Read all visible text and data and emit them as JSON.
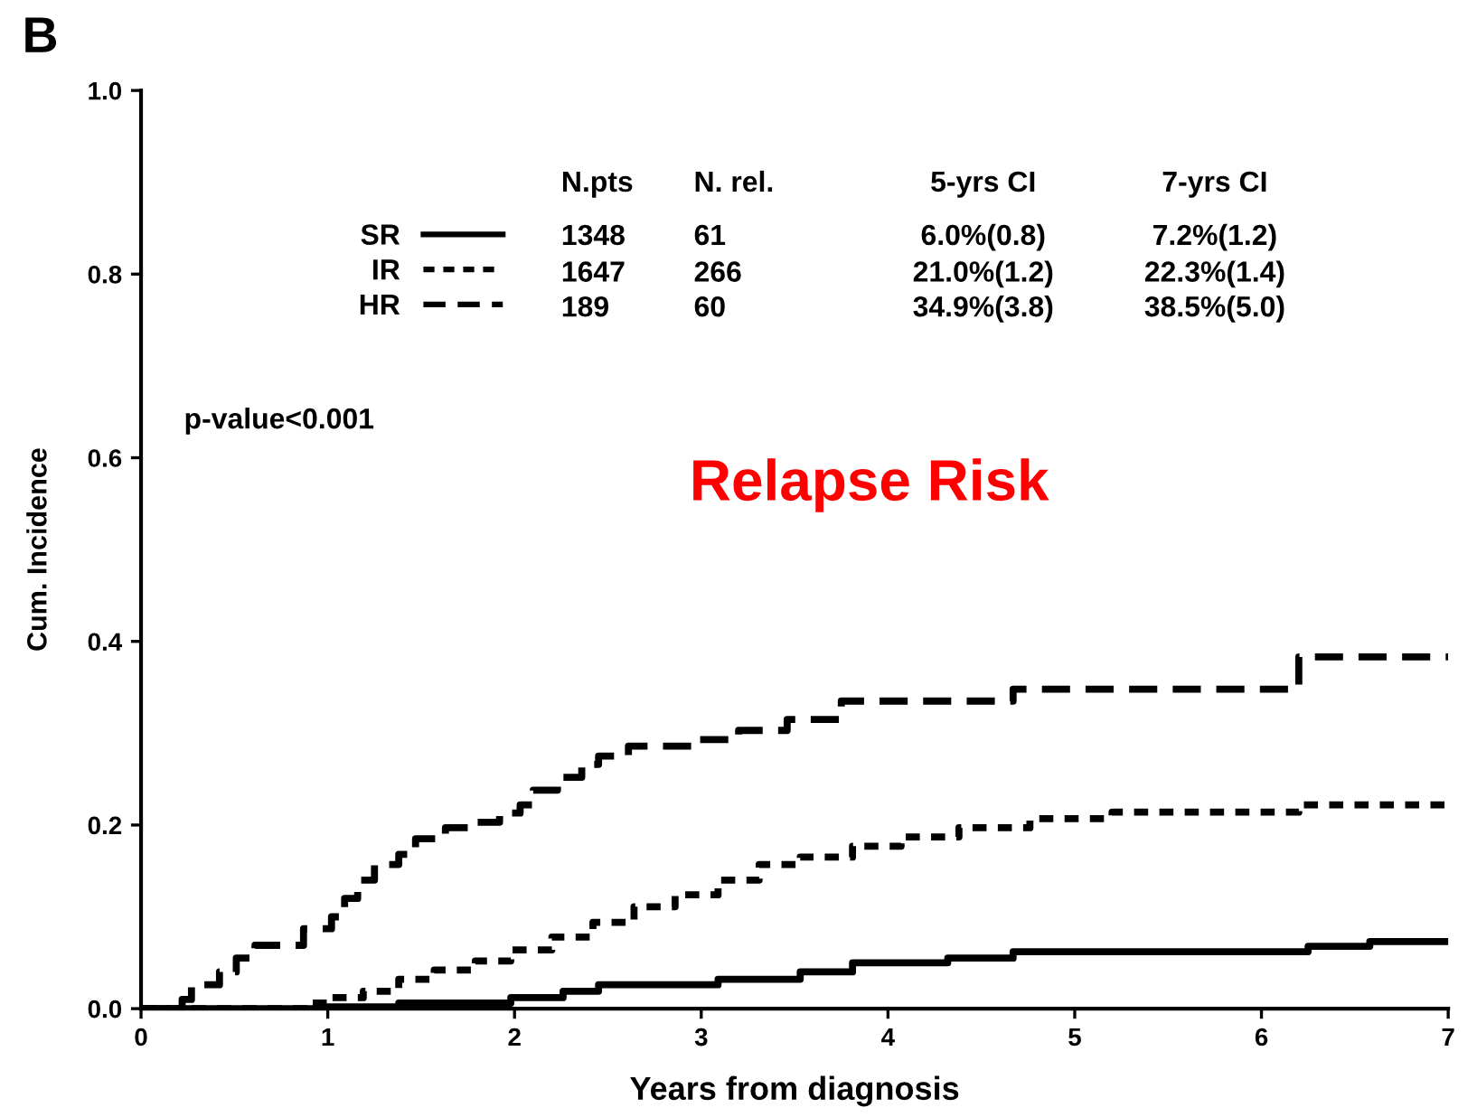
{
  "chart_data": {
    "type": "step",
    "title": "B",
    "xlabel": "Years from diagnosis",
    "ylabel": "Cum. Incidence",
    "xlim": [
      0,
      7
    ],
    "xticks": [
      0,
      1,
      2,
      3,
      4,
      5,
      6,
      7
    ],
    "ylim": [
      0,
      1
    ],
    "yticks": [
      {
        "value": 0,
        "label": "0.0"
      },
      {
        "value": 0.2,
        "label": "0.2"
      },
      {
        "value": 0.4,
        "label": "0.4"
      },
      {
        "value": 0.6,
        "label": "0.6"
      },
      {
        "value": 0.8,
        "label": "0.8"
      },
      {
        "value": 1,
        "label": "1.0"
      }
    ],
    "grid": false,
    "legend": "top",
    "series": [
      {
        "name": "SR",
        "color": "#000000",
        "line_style": "solid",
        "x": [
          0,
          1.0,
          1.38,
          1.98,
          2.26,
          2.45,
          3.09,
          3.53,
          3.81,
          4.32,
          4.67,
          6.25,
          6.58,
          7
        ],
        "values": [
          0,
          0.002,
          0.006,
          0.012,
          0.019,
          0.026,
          0.032,
          0.04,
          0.05,
          0.055,
          0.062,
          0.068,
          0.073,
          0.073
        ]
      },
      {
        "name": "IR",
        "color": "#000000",
        "line_style": "dotted",
        "x": [
          0,
          0.87,
          1.0,
          1.19,
          1.38,
          1.57,
          1.79,
          1.98,
          2.2,
          2.42,
          2.64,
          2.86,
          3.09,
          3.31,
          3.53,
          3.81,
          4.07,
          4.38,
          4.76,
          5.2,
          6.2,
          7
        ],
        "values": [
          0,
          0.006,
          0.012,
          0.019,
          0.032,
          0.042,
          0.052,
          0.064,
          0.078,
          0.094,
          0.111,
          0.124,
          0.14,
          0.157,
          0.165,
          0.177,
          0.187,
          0.197,
          0.207,
          0.214,
          0.222,
          0.222
        ]
      },
      {
        "name": "HR",
        "color": "#000000",
        "line_style": "dashed",
        "x": [
          0,
          0.22,
          0.27,
          0.42,
          0.51,
          0.61,
          0.87,
          1.02,
          1.09,
          1.16,
          1.25,
          1.38,
          1.47,
          1.63,
          1.75,
          1.92,
          2.03,
          2.1,
          2.23,
          2.36,
          2.45,
          2.61,
          2.96,
          3.2,
          3.46,
          3.75,
          4.67,
          6.2,
          7
        ],
        "values": [
          0,
          0.01,
          0.026,
          0.04,
          0.055,
          0.069,
          0.087,
          0.1,
          0.12,
          0.14,
          0.157,
          0.168,
          0.185,
          0.197,
          0.203,
          0.213,
          0.222,
          0.238,
          0.252,
          0.266,
          0.275,
          0.286,
          0.293,
          0.303,
          0.315,
          0.335,
          0.348,
          0.383,
          0.383
        ]
      }
    ],
    "annotations": [
      "N.pts",
      "N. rel.",
      "5-yrs CI",
      "7-yrs CI",
      "1348",
      "61",
      "6.0%(0.8)",
      "7.2%(1.2)",
      "1647",
      "266",
      "21.0%(1.2)",
      "22.3%(1.4)",
      "189",
      "60",
      "34.9%(3.8)",
      "38.5%(5.0)",
      "p-value<0.001",
      "Relapse Risk"
    ]
  }
}
